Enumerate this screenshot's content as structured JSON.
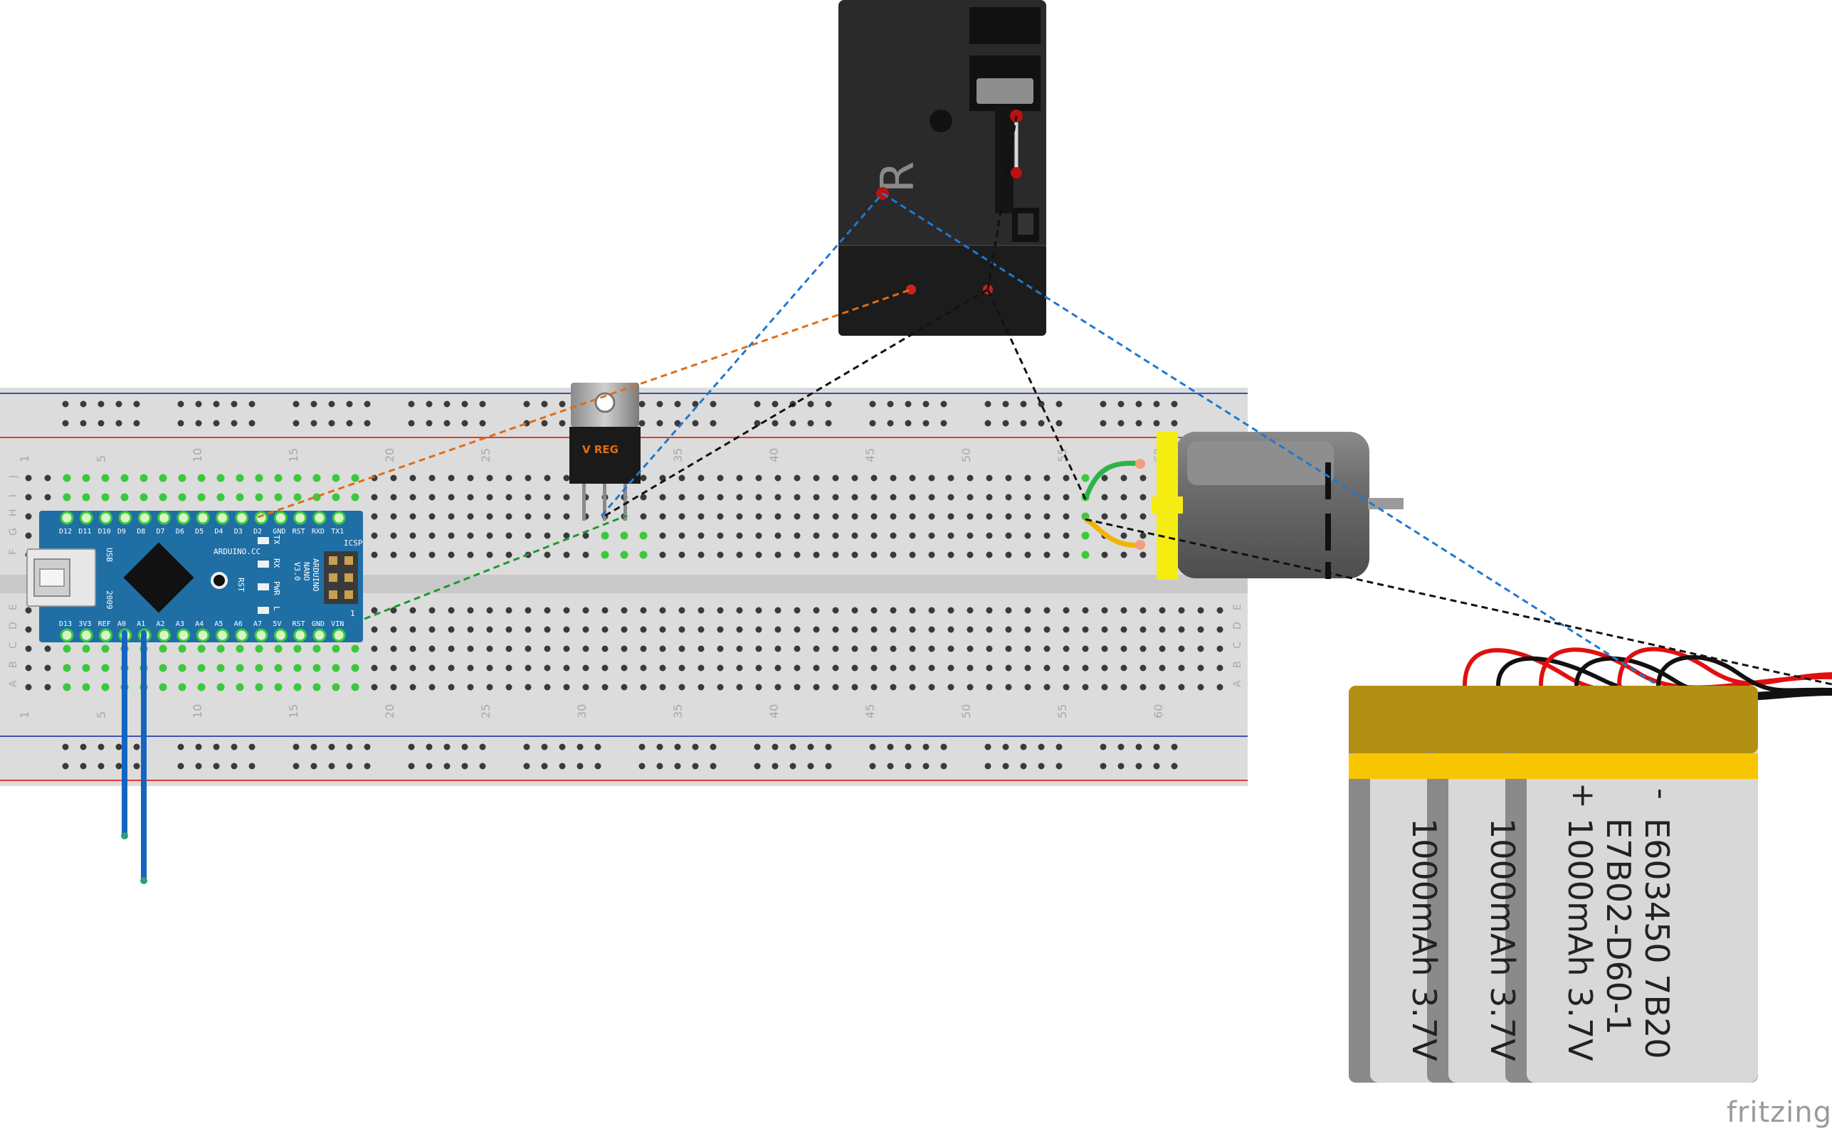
{
  "app": {
    "watermark": "fritzing"
  },
  "breadboard": {
    "column_numbers": [
      "1",
      "5",
      "10",
      "15",
      "20",
      "25",
      "30",
      "35",
      "40",
      "45",
      "50",
      "55",
      "60"
    ],
    "row_letters_top": [
      "J",
      "I",
      "H",
      "G",
      "F"
    ],
    "row_letters_bottom": [
      "E",
      "D",
      "C",
      "B",
      "A"
    ]
  },
  "arduino": {
    "top_pins": [
      "D12",
      "D11",
      "D10",
      "D9",
      "D8",
      "D7",
      "D6",
      "D5",
      "D4",
      "D3",
      "D2",
      "GND",
      "RST",
      "RXD",
      "TX1"
    ],
    "bottom_pins": [
      "D13",
      "3V3",
      "REF",
      "A0",
      "A1",
      "A2",
      "A3",
      "A4",
      "A5",
      "A6",
      "A7",
      "5V",
      "RST",
      "GND",
      "VIN"
    ],
    "brand": "ARDUINO.CC",
    "model_lines": [
      "ARDUINO",
      "NANO",
      "V3.0"
    ],
    "icsp": "ICSP",
    "rst": "RST",
    "led_labels": [
      "TX",
      "RX",
      "PWR",
      "L"
    ],
    "usb_label": "USB",
    "year": "2009",
    "pin_one": "1"
  },
  "regulator": {
    "label": "V REG"
  },
  "relay": {
    "logo": "R"
  },
  "battery": {
    "label_lines": [
      "E603450 7B20",
      "E7B02-D60-1",
      "1000mAh 3.7V"
    ],
    "minus": "-",
    "plus": "+",
    "partial_lines": [
      "1000mAh 3.7V",
      "1000mAh 3.7V"
    ]
  },
  "colors": {
    "breadboard": "#d9d9d9",
    "rail_blue": "#3f51b5",
    "rail_red": "#e53935",
    "hole": "#3a3a3a",
    "hole_active": "#3cc83c",
    "arduino_board": "#1f6fa5",
    "wire_blue": "#1565c0",
    "dash_orange": "#e06d14",
    "dash_blue": "#1f78d1",
    "dash_black": "#111111",
    "dash_green": "#1a9a2a",
    "motor_yellow": "#f5ed12",
    "battery_gold": "#b38f13",
    "battery_band": "#f7c600"
  }
}
